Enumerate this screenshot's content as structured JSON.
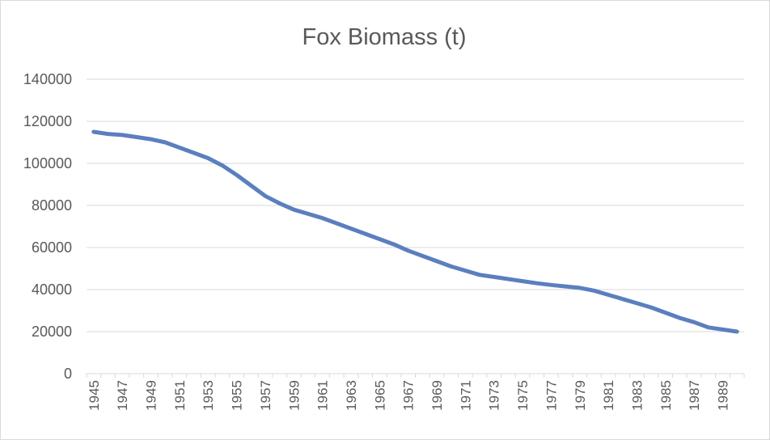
{
  "chart_data": {
    "type": "line",
    "title": "Fox Biomass (t)",
    "xlabel": "",
    "ylabel": "",
    "ylim": [
      0,
      140000
    ],
    "yticks": [
      0,
      20000,
      40000,
      60000,
      80000,
      100000,
      120000,
      140000
    ],
    "x": [
      1945,
      1946,
      1947,
      1948,
      1949,
      1950,
      1951,
      1952,
      1953,
      1954,
      1955,
      1956,
      1957,
      1958,
      1959,
      1960,
      1961,
      1962,
      1963,
      1964,
      1965,
      1966,
      1967,
      1968,
      1969,
      1970,
      1971,
      1972,
      1973,
      1974,
      1975,
      1976,
      1977,
      1978,
      1979,
      1980,
      1981,
      1982,
      1983,
      1984,
      1985,
      1986,
      1987,
      1988,
      1989,
      1990
    ],
    "x_tick_labels": [
      "1945",
      "1947",
      "1949",
      "1951",
      "1953",
      "1955",
      "1957",
      "1959",
      "1961",
      "1963",
      "1965",
      "1967",
      "1969",
      "1971",
      "1973",
      "1975",
      "1977",
      "1979",
      "1981",
      "1983",
      "1985",
      "1987",
      "1989"
    ],
    "series": [
      {
        "values": [
          115000,
          114000,
          113500,
          112500,
          111500,
          110000,
          107500,
          105000,
          102500,
          99000,
          94500,
          89500,
          84500,
          81000,
          78000,
          76000,
          74000,
          71500,
          69000,
          66500,
          64000,
          61500,
          58500,
          56000,
          53500,
          51000,
          49000,
          47000,
          46000,
          45000,
          44000,
          43000,
          42200,
          41500,
          40800,
          39500,
          37500,
          35500,
          33500,
          31500,
          29000,
          26500,
          24500,
          22000,
          21000,
          20000
        ],
        "color": "#5b7fbe"
      }
    ],
    "grid": true,
    "legend": "none"
  }
}
